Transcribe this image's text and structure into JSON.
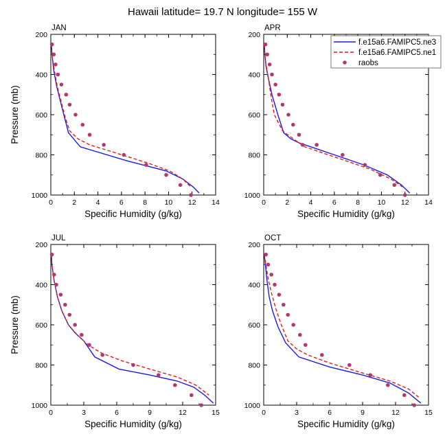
{
  "title": "Hawaii  latitude= 19.7 N longitude= 155 W",
  "colors": {
    "ne3": "#1a1ae6",
    "ne1": "#e11a1a",
    "raobs": "#b03a6e"
  },
  "legend": {
    "placement": "top-right",
    "entries": [
      {
        "key": "ne3",
        "label": "f.e15a6.FAMIPC5.ne3",
        "style": "solid"
      },
      {
        "key": "ne1",
        "label": "f.e15a6.FAMIPC5.ne1",
        "style": "dashed"
      },
      {
        "key": "raobs",
        "label": "raobs",
        "style": "marker"
      }
    ]
  },
  "chart_data": [
    {
      "panel": "JAN",
      "type": "line",
      "xlabel": "Specific Humidity (g/kg)",
      "ylabel": "Pressure (mb)",
      "xlim": [
        0,
        14
      ],
      "ylim": [
        1000,
        200
      ],
      "xticks": [
        0,
        2,
        4,
        6,
        8,
        10,
        12,
        14
      ],
      "yticks": [
        200,
        400,
        600,
        800,
        1000
      ],
      "series": [
        {
          "name": "f.e15a6.FAMIPC5.ne3",
          "x": [
            0.05,
            0.1,
            0.25,
            0.5,
            0.8,
            1.1,
            1.5,
            2.5,
            6.5,
            9.8,
            11.2,
            12.1,
            12.6
          ],
          "y": [
            250,
            300,
            380,
            460,
            530,
            600,
            690,
            760,
            830,
            880,
            920,
            960,
            990
          ]
        },
        {
          "name": "f.e15a6.FAMIPC5.ne1",
          "x": [
            0.05,
            0.1,
            0.3,
            0.55,
            0.9,
            1.2,
            1.6,
            2.3,
            3.3,
            5.5,
            8.2,
            10.1,
            11.2,
            11.9
          ],
          "y": [
            250,
            300,
            380,
            460,
            540,
            610,
            680,
            720,
            750,
            790,
            840,
            880,
            920,
            960
          ]
        },
        {
          "name": "raobs",
          "x": [
            0.1,
            0.25,
            0.4,
            0.6,
            0.9,
            1.3,
            1.6,
            2.1,
            2.7,
            3.3,
            4.5,
            6.2,
            8.1,
            9.8,
            11.0,
            11.9
          ],
          "y": [
            250,
            300,
            350,
            400,
            450,
            500,
            550,
            600,
            650,
            700,
            750,
            800,
            850,
            900,
            950,
            1000
          ]
        }
      ]
    },
    {
      "panel": "APR",
      "type": "line",
      "xlabel": "Specific Humidity (g/kg)",
      "ylabel": "Pressure (mb)",
      "xlim": [
        0,
        14
      ],
      "ylim": [
        1000,
        200
      ],
      "xticks": [
        0,
        2,
        4,
        6,
        8,
        10,
        12,
        14
      ],
      "yticks": [
        200,
        400,
        600,
        800,
        1000
      ],
      "series": [
        {
          "name": "f.e15a6.FAMIPC5.ne3",
          "x": [
            0.05,
            0.1,
            0.2,
            0.4,
            0.7,
            1.2,
            1.7,
            2.3,
            3.0,
            4.0,
            6.0,
            8.5,
            10.5,
            11.7,
            12.4
          ],
          "y": [
            250,
            300,
            360,
            420,
            500,
            600,
            690,
            720,
            740,
            760,
            800,
            850,
            900,
            950,
            990
          ]
        },
        {
          "name": "f.e15a6.FAMIPC5.ne1",
          "x": [
            0.05,
            0.1,
            0.2,
            0.4,
            0.6,
            0.9,
            1.6,
            2.5,
            3.5,
            5.0,
            7.0,
            9.0,
            10.8,
            11.8
          ],
          "y": [
            250,
            300,
            350,
            420,
            500,
            600,
            680,
            720,
            760,
            790,
            830,
            870,
            920,
            960
          ]
        },
        {
          "name": "raobs",
          "x": [
            0.15,
            0.3,
            0.5,
            0.7,
            1.0,
            1.3,
            1.6,
            2.1,
            2.5,
            3.0,
            3.3,
            4.5,
            6.7,
            8.6,
            9.9,
            11.1,
            12.0
          ],
          "y": [
            250,
            300,
            350,
            400,
            450,
            500,
            550,
            600,
            650,
            700,
            750,
            750,
            800,
            850,
            900,
            950,
            1000
          ]
        }
      ]
    },
    {
      "panel": "JUL",
      "type": "line",
      "xlabel": "Specific Humidity (g/kg)",
      "ylabel": "Pressure (mb)",
      "xlim": [
        0,
        15
      ],
      "ylim": [
        1000,
        200
      ],
      "xticks": [
        0,
        3,
        6,
        9,
        12,
        15
      ],
      "yticks": [
        200,
        400,
        600,
        800,
        1000
      ],
      "series": [
        {
          "name": "f.e15a6.FAMIPC5.ne3",
          "x": [
            0.05,
            0.1,
            0.3,
            0.6,
            1.0,
            1.6,
            2.2,
            3.0,
            4.0,
            6.2,
            9.0,
            11.5,
            13.0,
            14.0,
            14.8
          ],
          "y": [
            250,
            300,
            380,
            460,
            530,
            600,
            640,
            680,
            760,
            820,
            850,
            880,
            910,
            950,
            990
          ]
        },
        {
          "name": "f.e15a6.FAMIPC5.ne1",
          "x": [
            0.05,
            0.1,
            0.3,
            0.6,
            1.0,
            1.6,
            2.4,
            3.4,
            4.6,
            6.5,
            9.0,
            11.5,
            13.2,
            14.4
          ],
          "y": [
            250,
            300,
            380,
            460,
            530,
            600,
            650,
            700,
            740,
            780,
            820,
            860,
            900,
            950
          ]
        },
        {
          "name": "raobs",
          "x": [
            0.1,
            0.3,
            0.5,
            0.9,
            1.3,
            1.7,
            2.2,
            2.8,
            3.5,
            4.7,
            7.5,
            9.8,
            11.3,
            12.8,
            13.7
          ],
          "y": [
            250,
            350,
            400,
            450,
            500,
            550,
            600,
            650,
            700,
            750,
            800,
            850,
            900,
            950,
            1000
          ]
        }
      ]
    },
    {
      "panel": "OCT",
      "type": "line",
      "xlabel": "Specific Humidity (g/kg)",
      "ylabel": "Pressure (mb)",
      "xlim": [
        0,
        15
      ],
      "ylim": [
        1000,
        200
      ],
      "xticks": [
        0,
        3,
        6,
        9,
        12,
        15
      ],
      "yticks": [
        200,
        400,
        600,
        800,
        1000
      ],
      "series": [
        {
          "name": "f.e15a6.FAMIPC5.ne3",
          "x": [
            0.05,
            0.15,
            0.3,
            0.5,
            0.8,
            1.3,
            2.0,
            3.2,
            6.0,
            9.0,
            11.5,
            13.2,
            14.3
          ],
          "y": [
            250,
            300,
            380,
            460,
            530,
            610,
            690,
            760,
            810,
            850,
            890,
            940,
            990
          ]
        },
        {
          "name": "f.e15a6.FAMIPC5.ne1",
          "x": [
            0.05,
            0.2,
            0.4,
            0.7,
            1.1,
            1.6,
            2.2,
            3.0,
            4.0,
            6.0,
            9.0,
            11.5,
            13.2,
            14.1
          ],
          "y": [
            250,
            300,
            370,
            440,
            520,
            600,
            680,
            720,
            750,
            790,
            840,
            880,
            920,
            960
          ]
        },
        {
          "name": "raobs",
          "x": [
            0.2,
            0.4,
            0.7,
            1.0,
            1.4,
            1.8,
            2.2,
            2.7,
            3.3,
            3.8,
            5.3,
            7.8,
            9.7,
            11.3,
            12.8,
            13.7
          ],
          "y": [
            250,
            300,
            350,
            400,
            450,
            500,
            550,
            600,
            650,
            700,
            750,
            800,
            850,
            900,
            950,
            1000
          ]
        }
      ]
    }
  ]
}
